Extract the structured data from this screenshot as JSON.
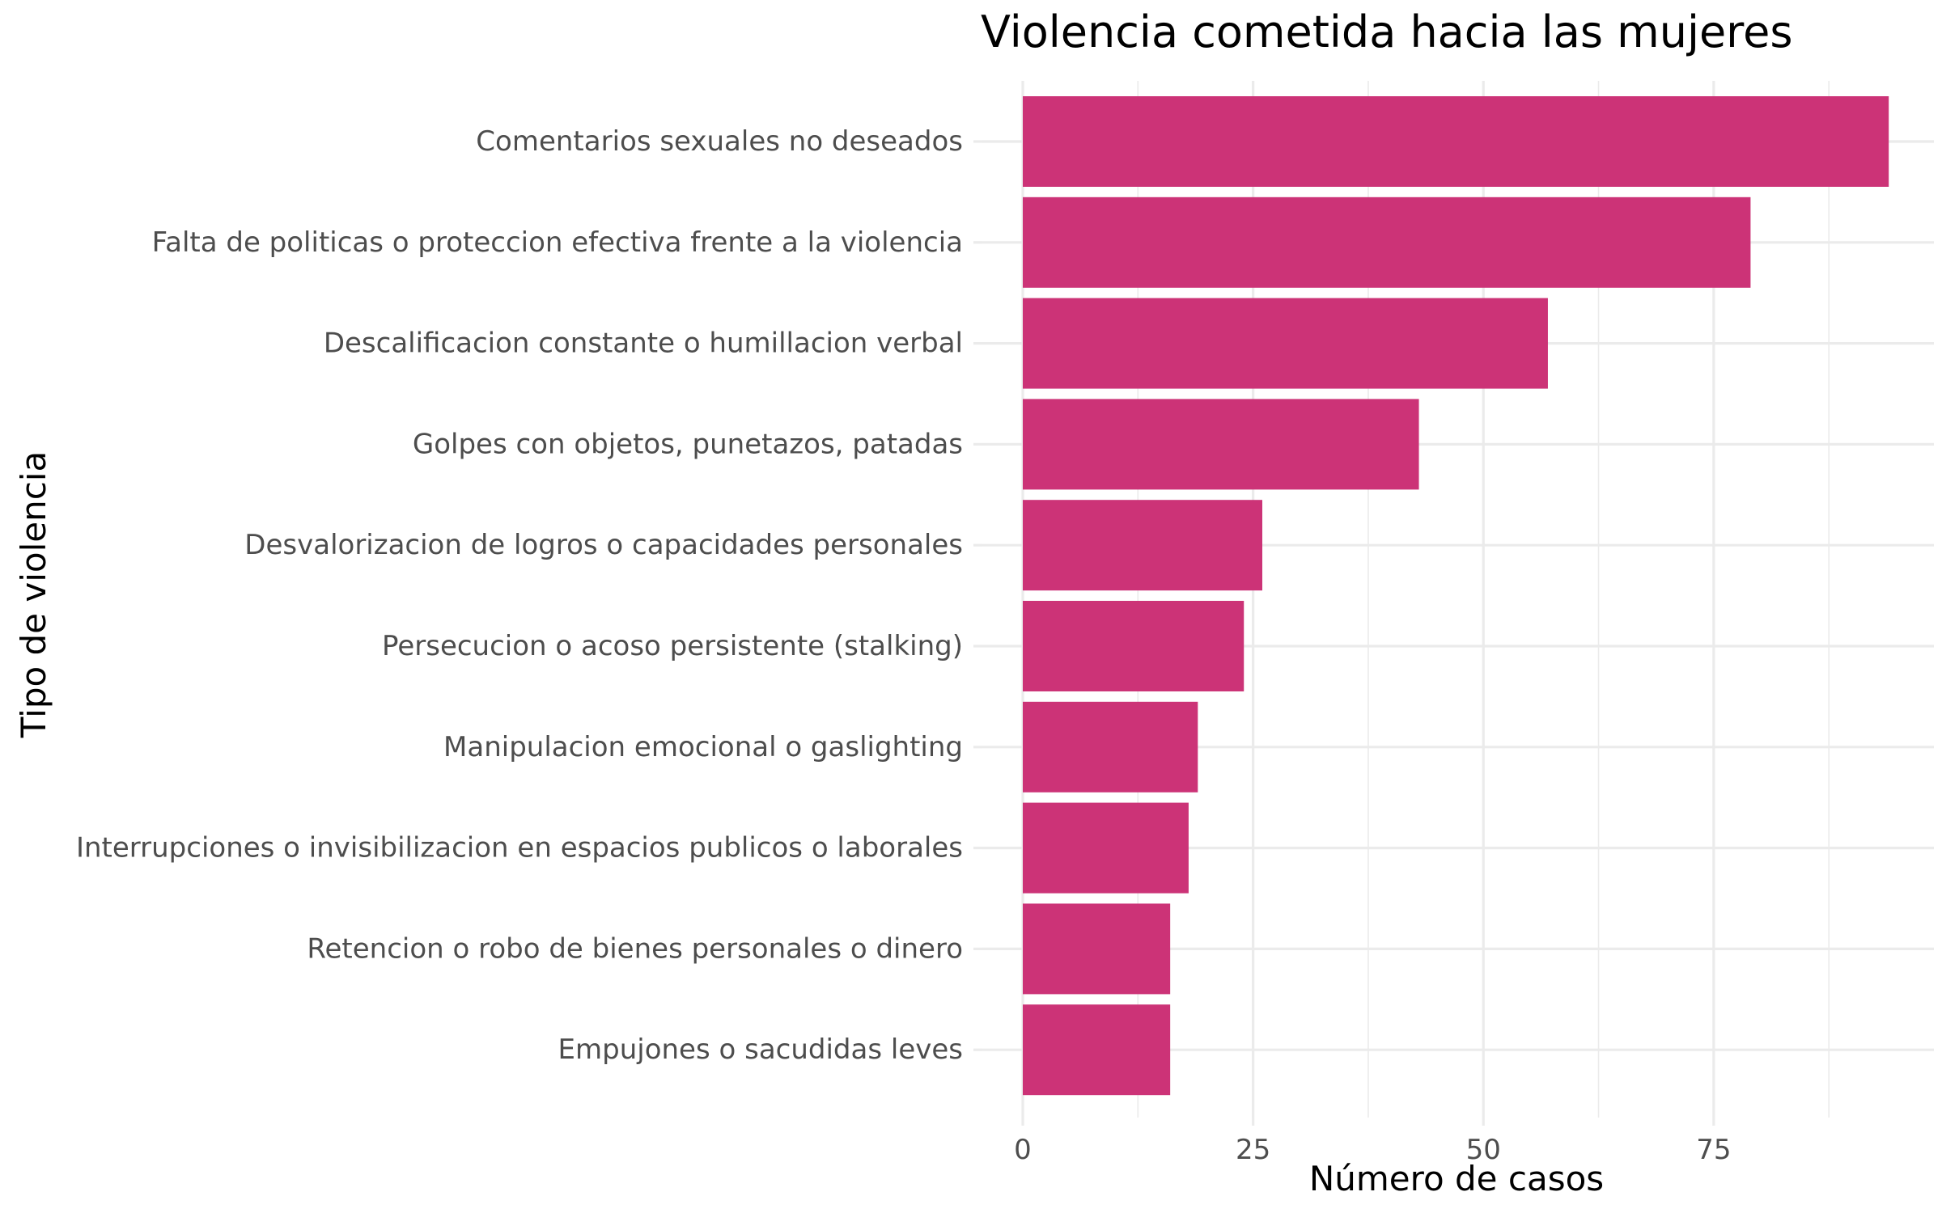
{
  "chart_data": {
    "type": "bar",
    "orientation": "horizontal",
    "title": "Violencia cometida hacia las mujeres",
    "xlabel": "Número de casos",
    "ylabel": "Tipo de violencia",
    "categories": [
      "Comentarios sexuales no deseados",
      "Falta de politicas o proteccion efectiva frente a la violencia",
      "Descalificacion constante o humillacion verbal",
      "Golpes con objetos, punetazos, patadas",
      "Desvalorizacion de logros o capacidades personales",
      "Persecucion o acoso persistente (stalking)",
      "Manipulacion emocional o gaslighting",
      "Interrupciones o invisibilizacion en espacios publicos o laborales",
      "Retencion o robo de bienes personales o dinero",
      "Empujones o sacudidas leves"
    ],
    "values": [
      94,
      79,
      57,
      43,
      26,
      24,
      19,
      18,
      16,
      16
    ],
    "xlim": [
      0,
      98
    ],
    "xticks": [
      0,
      25,
      50,
      75
    ],
    "xtick_labels": [
      "0",
      "25",
      "50",
      "75"
    ],
    "grid": true,
    "legend": "none",
    "bar_color": "#CC3377"
  }
}
